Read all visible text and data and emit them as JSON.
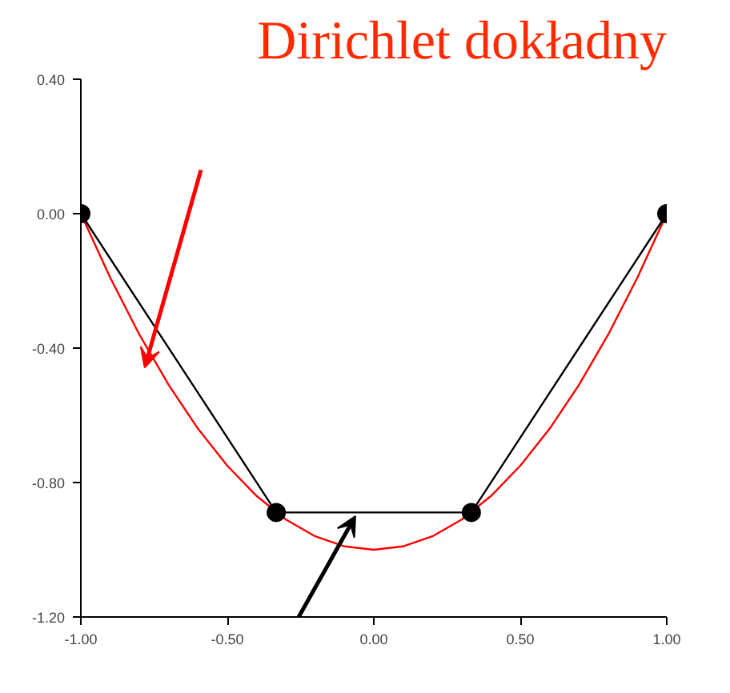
{
  "chart_data": {
    "type": "line",
    "title": "Dirichlet dokładny",
    "xlim": [
      -1,
      1
    ],
    "ylim": [
      -1.2,
      0.4
    ],
    "xticks": [
      {
        "value": -1,
        "label": "-1.00"
      },
      {
        "value": -0.5,
        "label": "-0.50"
      },
      {
        "value": 0,
        "label": "0.00"
      },
      {
        "value": 0.5,
        "label": "0.50"
      },
      {
        "value": 1,
        "label": "1.00"
      }
    ],
    "yticks": [
      {
        "value": -1.2,
        "label": "-1.20"
      },
      {
        "value": -0.8,
        "label": "-0.80"
      },
      {
        "value": -0.4,
        "label": "-0.40"
      },
      {
        "value": 0,
        "label": "0.00"
      },
      {
        "value": 0.4,
        "label": "0.40"
      }
    ],
    "grid": false,
    "series": [
      {
        "color": "#ff0000",
        "marker": "none",
        "x": [
          -1,
          -0.9,
          -0.8,
          -0.7,
          -0.6,
          -0.5,
          -0.4,
          -0.3,
          -0.2,
          -0.1,
          0,
          0.1,
          0.2,
          0.3,
          0.4,
          0.5,
          0.6,
          0.7,
          0.8,
          0.9,
          1
        ],
        "values": [
          0,
          -0.19,
          -0.36,
          -0.51,
          -0.64,
          -0.75,
          -0.84,
          -0.91,
          -0.96,
          -0.99,
          -1,
          -0.99,
          -0.96,
          -0.91,
          -0.84,
          -0.75,
          -0.64,
          -0.51,
          -0.36,
          -0.19,
          0
        ]
      },
      {
        "color": "#000000",
        "marker": "circle",
        "x": [
          -1,
          -0.333,
          0.333,
          1
        ],
        "values": [
          0,
          -0.889,
          -0.889,
          0
        ]
      }
    ]
  }
}
